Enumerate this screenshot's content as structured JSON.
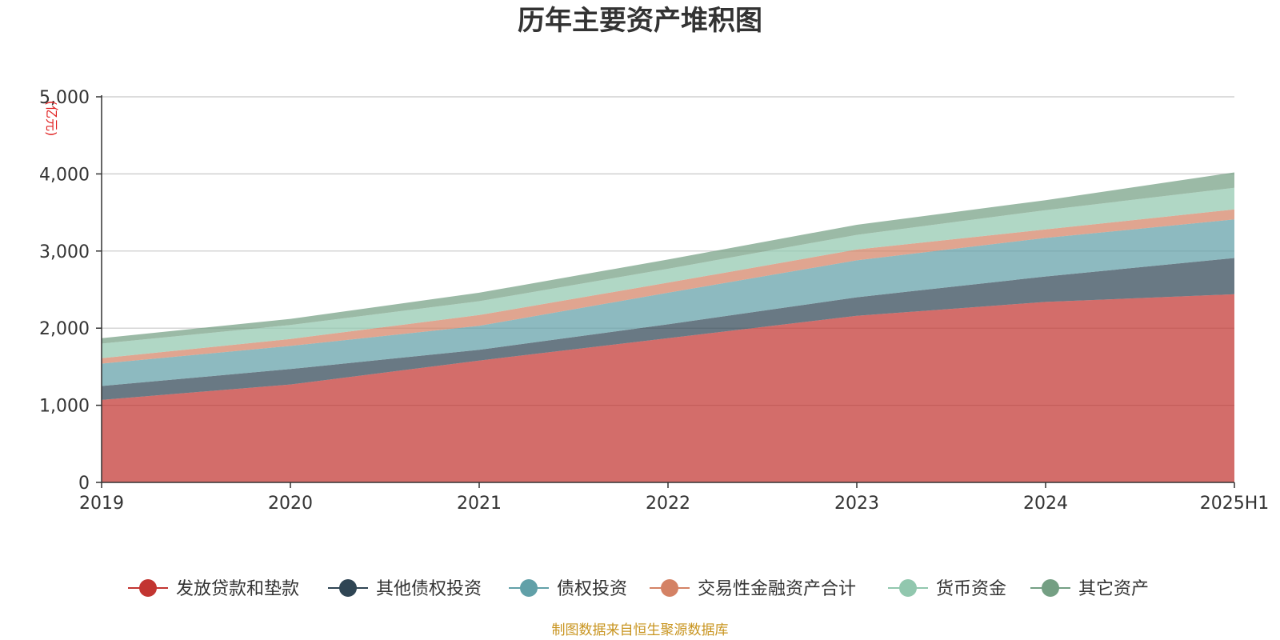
{
  "chart_data": {
    "type": "area",
    "stacked": true,
    "title": "历年主要资产堆积图",
    "unit_label": "(亿元)",
    "categories": [
      "2019",
      "2020",
      "2021",
      "2022",
      "2023",
      "2024",
      "2025H1"
    ],
    "y_ticks": [
      "0",
      "1,000",
      "2,000",
      "3,000",
      "4,000",
      "5,000"
    ],
    "ylim": [
      0,
      5000
    ],
    "grid": true,
    "legend_position": "bottom",
    "series": [
      {
        "name": "发放贷款和垫款",
        "color": "#c23531",
        "values": [
          1070,
          1270,
          1580,
          1870,
          2160,
          2340,
          2440
        ]
      },
      {
        "name": "其他债权投资",
        "color": "#2f4554",
        "values": [
          180,
          200,
          140,
          180,
          240,
          330,
          470
        ]
      },
      {
        "name": "债权投资",
        "color": "#61a0a8",
        "values": [
          290,
          300,
          310,
          410,
          480,
          500,
          500
        ]
      },
      {
        "name": "交易性金融资产合计",
        "color": "#d48265",
        "values": [
          70,
          90,
          140,
          130,
          140,
          110,
          130
        ]
      },
      {
        "name": "货币资金",
        "color": "#91c7ae",
        "values": [
          190,
          180,
          180,
          180,
          190,
          250,
          280
        ]
      },
      {
        "name": "其它资产",
        "color": "#749f83",
        "values": [
          70,
          80,
          110,
          120,
          130,
          130,
          200
        ]
      }
    ],
    "source_note": "制图数据来自恒生聚源数据库"
  }
}
